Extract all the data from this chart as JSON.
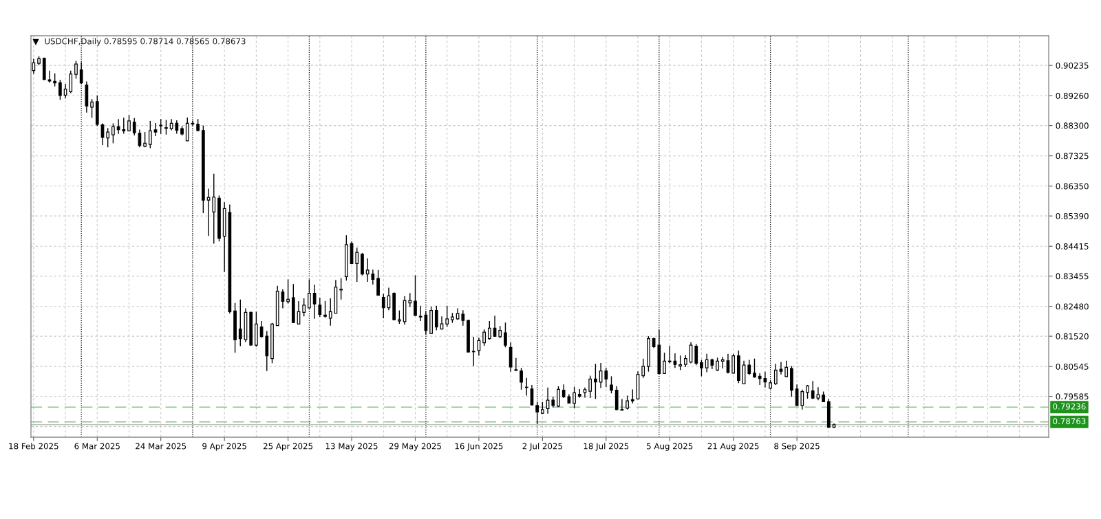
{
  "chart_data": {
    "type": "candlestick",
    "title": "USDCHF,Daily 0.78595 0.78714 0.78565 0.78673",
    "categories": [
      "18 Feb 2025",
      null,
      null,
      null,
      null,
      null,
      null,
      null,
      null,
      null,
      null,
      null,
      "6 Mar 2025",
      null,
      null,
      null,
      null,
      null,
      null,
      null,
      null,
      null,
      null,
      null,
      "24 Mar 2025",
      null,
      null,
      null,
      null,
      null,
      null,
      null,
      null,
      null,
      null,
      null,
      "9 Apr 2025",
      null,
      null,
      null,
      null,
      null,
      null,
      null,
      null,
      null,
      null,
      null,
      "25 Apr 2025",
      null,
      null,
      null,
      null,
      null,
      null,
      null,
      null,
      null,
      null,
      null,
      "13 May 2025",
      null,
      null,
      null,
      null,
      null,
      null,
      null,
      null,
      null,
      null,
      null,
      "29 May 2025",
      null,
      null,
      null,
      null,
      null,
      null,
      null,
      null,
      null,
      null,
      null,
      "16 Jun 2025",
      null,
      null,
      null,
      null,
      null,
      null,
      null,
      null,
      null,
      null,
      null,
      "2 Jul 2025",
      null,
      null,
      null,
      null,
      null,
      null,
      null,
      null,
      null,
      null,
      null,
      "18 Jul 2025",
      null,
      null,
      null,
      null,
      null,
      null,
      null,
      null,
      null,
      null,
      null,
      "5 Aug 2025",
      null,
      null,
      null,
      null,
      null,
      null,
      null,
      null,
      null,
      null,
      null,
      "21 Aug 2025",
      null,
      null,
      null,
      null,
      null,
      null,
      null,
      null,
      null,
      null,
      null,
      "8 Sep 2025",
      null,
      null,
      null,
      null,
      null,
      null,
      null,
      null,
      null,
      null,
      null,
      null,
      null,
      null,
      null,
      null,
      null,
      null,
      null,
      null,
      null,
      null,
      null,
      null,
      null,
      null,
      null,
      null,
      null,
      null,
      null,
      null,
      null,
      null,
      null,
      null,
      null,
      null,
      null,
      null,
      null,
      null,
      null,
      null,
      null,
      null,
      null
    ],
    "ohlc": [
      [
        0.9007,
        0.9045,
        0.8996,
        0.9032
      ],
      [
        0.903,
        0.9053,
        0.9024,
        0.9045
      ],
      [
        0.9046,
        0.9049,
        0.8977,
        0.8978
      ],
      [
        0.8977,
        0.9007,
        0.8968,
        0.8973
      ],
      [
        0.8972,
        0.8998,
        0.8956,
        0.8967
      ],
      [
        0.8968,
        0.8977,
        0.8913,
        0.8927
      ],
      [
        0.8928,
        0.8964,
        0.8917,
        0.8947
      ],
      [
        0.8939,
        0.9007,
        0.8934,
        0.8996
      ],
      [
        0.8995,
        0.9038,
        0.8981,
        0.9028
      ],
      [
        0.9009,
        0.9034,
        0.8964,
        0.8967
      ],
      [
        0.896,
        0.8972,
        0.8872,
        0.8893
      ],
      [
        0.8889,
        0.8915,
        0.8855,
        0.8906
      ],
      [
        0.8907,
        0.8927,
        0.8828,
        0.8834
      ],
      [
        0.8832,
        0.8837,
        0.8767,
        0.8792
      ],
      [
        0.879,
        0.8822,
        0.876,
        0.8809
      ],
      [
        0.88,
        0.8837,
        0.8773,
        0.8826
      ],
      [
        0.8826,
        0.8851,
        0.8803,
        0.8817
      ],
      [
        0.8817,
        0.8855,
        0.8804,
        0.8813
      ],
      [
        0.8813,
        0.8864,
        0.8811,
        0.8845
      ],
      [
        0.8841,
        0.8854,
        0.8798,
        0.8807
      ],
      [
        0.8805,
        0.8817,
        0.876,
        0.8766
      ],
      [
        0.8763,
        0.8809,
        0.876,
        0.8773
      ],
      [
        0.8769,
        0.8845,
        0.8757,
        0.8813
      ],
      [
        0.8816,
        0.8838,
        0.8796,
        0.8809
      ],
      [
        0.8831,
        0.8851,
        0.8803,
        0.8829
      ],
      [
        0.8823,
        0.8848,
        0.8801,
        0.8821
      ],
      [
        0.882,
        0.8851,
        0.8815,
        0.8837
      ],
      [
        0.8837,
        0.8847,
        0.8804,
        0.8815
      ],
      [
        0.882,
        0.8828,
        0.8798,
        0.8803
      ],
      [
        0.8781,
        0.8856,
        0.8781,
        0.8837
      ],
      [
        0.8835,
        0.8845,
        0.883,
        0.8837
      ],
      [
        0.8834,
        0.8851,
        0.8811,
        0.8814
      ],
      [
        0.8814,
        0.883,
        0.8548,
        0.859
      ],
      [
        0.859,
        0.8627,
        0.8475,
        0.8599
      ],
      [
        0.8552,
        0.8675,
        0.845,
        0.86
      ],
      [
        0.8596,
        0.8605,
        0.8457,
        0.8467
      ],
      [
        0.8474,
        0.8583,
        0.8359,
        0.8563
      ],
      [
        0.855,
        0.8576,
        0.8225,
        0.8231
      ],
      [
        0.8233,
        0.8259,
        0.8099,
        0.8141
      ],
      [
        0.8175,
        0.827,
        0.812,
        0.8144
      ],
      [
        0.8141,
        0.8242,
        0.8133,
        0.8229
      ],
      [
        0.8229,
        0.8231,
        0.8121,
        0.8124
      ],
      [
        0.8123,
        0.8231,
        0.8118,
        0.8191
      ],
      [
        0.8182,
        0.8201,
        0.8148,
        0.8151
      ],
      [
        0.8152,
        0.8169,
        0.804,
        0.8089
      ],
      [
        0.808,
        0.8195,
        0.8065,
        0.8191
      ],
      [
        0.8186,
        0.8314,
        0.8186,
        0.8297
      ],
      [
        0.8294,
        0.8303,
        0.8242,
        0.8264
      ],
      [
        0.8263,
        0.8335,
        0.8257,
        0.8271
      ],
      [
        0.8276,
        0.832,
        0.8195,
        0.8196
      ],
      [
        0.8191,
        0.8265,
        0.8189,
        0.8231
      ],
      [
        0.8229,
        0.8274,
        0.8216,
        0.8252
      ],
      [
        0.8243,
        0.8335,
        0.8242,
        0.829
      ],
      [
        0.829,
        0.8318,
        0.8208,
        0.8256
      ],
      [
        0.8252,
        0.8276,
        0.8214,
        0.8222
      ],
      [
        0.822,
        0.8265,
        0.8212,
        0.8216
      ],
      [
        0.821,
        0.8274,
        0.8186,
        0.8231
      ],
      [
        0.8226,
        0.8333,
        0.8225,
        0.831
      ],
      [
        0.8301,
        0.8339,
        0.827,
        0.8303
      ],
      [
        0.8344,
        0.8477,
        0.8331,
        0.8447
      ],
      [
        0.845,
        0.8457,
        0.8384,
        0.8386
      ],
      [
        0.8386,
        0.8437,
        0.8327,
        0.8422
      ],
      [
        0.8416,
        0.842,
        0.8348,
        0.8352
      ],
      [
        0.8352,
        0.8403,
        0.8327,
        0.8365
      ],
      [
        0.8352,
        0.8366,
        0.8318,
        0.8335
      ],
      [
        0.8338,
        0.8365,
        0.8282,
        0.8284
      ],
      [
        0.8277,
        0.8288,
        0.821,
        0.8244
      ],
      [
        0.8244,
        0.8308,
        0.8236,
        0.8282
      ],
      [
        0.829,
        0.8293,
        0.8203,
        0.8205
      ],
      [
        0.8201,
        0.8235,
        0.8192,
        0.8205
      ],
      [
        0.8199,
        0.8281,
        0.8189,
        0.8267
      ],
      [
        0.8259,
        0.8291,
        0.8246,
        0.8267
      ],
      [
        0.8265,
        0.8348,
        0.8218,
        0.8219
      ],
      [
        0.8216,
        0.825,
        0.8201,
        0.8214
      ],
      [
        0.822,
        0.8233,
        0.8157,
        0.8171
      ],
      [
        0.8161,
        0.8247,
        0.8159,
        0.8235
      ],
      [
        0.8235,
        0.825,
        0.8171,
        0.8182
      ],
      [
        0.8175,
        0.8216,
        0.8174,
        0.8192
      ],
      [
        0.8191,
        0.825,
        0.8182,
        0.8208
      ],
      [
        0.8205,
        0.8227,
        0.8195,
        0.8214
      ],
      [
        0.8208,
        0.8242,
        0.8205,
        0.8225
      ],
      [
        0.8223,
        0.8236,
        0.8186,
        0.8203
      ],
      [
        0.8203,
        0.8205,
        0.8101,
        0.8101
      ],
      [
        0.8103,
        0.815,
        0.8056,
        0.8102
      ],
      [
        0.8106,
        0.8148,
        0.8089,
        0.8138
      ],
      [
        0.8131,
        0.8174,
        0.8121,
        0.8165
      ],
      [
        0.8144,
        0.8201,
        0.8141,
        0.8178
      ],
      [
        0.8178,
        0.8218,
        0.815,
        0.8152
      ],
      [
        0.815,
        0.8185,
        0.8146,
        0.8171
      ],
      [
        0.8163,
        0.8196,
        0.8116,
        0.8123
      ],
      [
        0.8116,
        0.8133,
        0.8038,
        0.8053
      ],
      [
        0.8044,
        0.8082,
        0.804,
        0.8042
      ],
      [
        0.804,
        0.805,
        0.798,
        0.8004
      ],
      [
        0.7988,
        0.8018,
        0.7961,
        0.7987
      ],
      [
        0.7982,
        0.7995,
        0.7929,
        0.7931
      ],
      [
        0.7929,
        0.794,
        0.7869,
        0.7908
      ],
      [
        0.7904,
        0.794,
        0.7902,
        0.7916
      ],
      [
        0.7919,
        0.7987,
        0.7903,
        0.7946
      ],
      [
        0.7946,
        0.7958,
        0.7923,
        0.7929
      ],
      [
        0.7927,
        0.7991,
        0.7924,
        0.7981
      ],
      [
        0.7978,
        0.7997,
        0.7953,
        0.7957
      ],
      [
        0.7957,
        0.7965,
        0.7936,
        0.7937
      ],
      [
        0.7936,
        0.7989,
        0.7921,
        0.797
      ],
      [
        0.7965,
        0.7982,
        0.7954,
        0.7959
      ],
      [
        0.7971,
        0.7987,
        0.7954,
        0.798
      ],
      [
        0.7975,
        0.8025,
        0.7953,
        0.8014
      ],
      [
        0.8014,
        0.8063,
        0.795,
        0.8005
      ],
      [
        0.8004,
        0.8066,
        0.7985,
        0.804
      ],
      [
        0.804,
        0.805,
        0.7988,
        0.8014
      ],
      [
        0.7995,
        0.8023,
        0.7968,
        0.7978
      ],
      [
        0.7978,
        0.7991,
        0.7914,
        0.7916
      ],
      [
        0.7916,
        0.795,
        0.7913,
        0.7914
      ],
      [
        0.792,
        0.7961,
        0.7916,
        0.7944
      ],
      [
        0.7948,
        0.7981,
        0.7936,
        0.7944
      ],
      [
        0.795,
        0.8039,
        0.7948,
        0.8029
      ],
      [
        0.8025,
        0.808,
        0.8018,
        0.8055
      ],
      [
        0.8055,
        0.8152,
        0.8038,
        0.8144
      ],
      [
        0.8144,
        0.8148,
        0.8114,
        0.8118
      ],
      [
        0.8123,
        0.8172,
        0.8029,
        0.8032
      ],
      [
        0.8032,
        0.8099,
        0.8031,
        0.8072
      ],
      [
        0.8072,
        0.8121,
        0.8065,
        0.807
      ],
      [
        0.8072,
        0.8097,
        0.805,
        0.8061
      ],
      [
        0.8056,
        0.809,
        0.8043,
        0.806
      ],
      [
        0.8061,
        0.8091,
        0.8053,
        0.808
      ],
      [
        0.8069,
        0.8133,
        0.8065,
        0.8123
      ],
      [
        0.812,
        0.8127,
        0.8059,
        0.8065
      ],
      [
        0.8067,
        0.8076,
        0.8023,
        0.805
      ],
      [
        0.805,
        0.8095,
        0.8036,
        0.8076
      ],
      [
        0.8076,
        0.808,
        0.8046,
        0.8059
      ],
      [
        0.8043,
        0.8083,
        0.804,
        0.8072
      ],
      [
        0.8072,
        0.8086,
        0.8048,
        0.8076
      ],
      [
        0.8073,
        0.8095,
        0.8032,
        0.8036
      ],
      [
        0.8033,
        0.8095,
        0.8032,
        0.8089
      ],
      [
        0.8089,
        0.8106,
        0.8001,
        0.801
      ],
      [
        0.7999,
        0.8073,
        0.7998,
        0.8059
      ],
      [
        0.8059,
        0.8076,
        0.8027,
        0.8032
      ],
      [
        0.8033,
        0.808,
        0.8018,
        0.8021
      ],
      [
        0.8023,
        0.8033,
        0.7995,
        0.8016
      ],
      [
        0.8016,
        0.8038,
        0.7987,
        0.8005
      ],
      [
        0.7985,
        0.801,
        0.7982,
        0.8002
      ],
      [
        0.7999,
        0.8063,
        0.7995,
        0.8043
      ],
      [
        0.8046,
        0.8069,
        0.8029,
        0.8039
      ],
      [
        0.8022,
        0.8073,
        0.8021,
        0.8052
      ],
      [
        0.8048,
        0.8056,
        0.7957,
        0.7978
      ],
      [
        0.7982,
        0.7997,
        0.7927,
        0.7929
      ],
      [
        0.7929,
        0.798,
        0.7916,
        0.7974
      ],
      [
        0.7971,
        0.7995,
        0.7951,
        0.7992
      ],
      [
        0.7976,
        0.8008,
        0.795,
        0.7953
      ],
      [
        0.7953,
        0.7988,
        0.7946,
        0.7964
      ],
      [
        0.7963,
        0.7974,
        0.794,
        0.7941
      ],
      [
        0.7941,
        0.795,
        0.7857,
        0.7859
      ],
      [
        0.78595,
        0.78714,
        0.78565,
        0.78673
      ],
      null,
      null,
      null,
      null,
      null,
      null,
      null,
      null,
      null,
      null,
      null,
      null,
      null,
      null,
      null,
      null,
      null,
      null,
      null,
      null,
      null,
      null,
      null,
      null,
      null,
      null,
      null,
      null,
      null,
      null,
      null,
      null,
      null,
      null,
      null,
      null,
      null,
      null,
      null,
      null
    ],
    "ylim": [
      0.7827,
      0.9119
    ],
    "yticks": [
      {
        "value": 0.7861,
        "label": null
      },
      0.79585,
      0.80545,
      {
        "value": 0.8152,
        "label": "0.81520"
      },
      {
        "value": 0.8248,
        "label": "0.82480"
      },
      0.83455,
      0.84415,
      {
        "value": 0.8539,
        "label": "0.85390"
      },
      {
        "value": 0.8635,
        "label": "0.86350"
      },
      0.87325,
      {
        "value": 0.883,
        "label": "0.88300"
      },
      {
        "value": 0.8926,
        "label": "0.89260"
      },
      0.90235
    ],
    "grid": true,
    "ref_lines": [
      {
        "axis": "y",
        "value": 0.79236,
        "label": "0.79236",
        "color": "#88c488",
        "line_style": "dashed"
      },
      {
        "axis": "y",
        "value": 0.78763,
        "label": "0.78763",
        "color": "#88c488",
        "line_style": "dashed"
      },
      {
        "axis": "y",
        "value": 0.78673,
        "color": "#c0c0c0",
        "line_style": "solid"
      }
    ]
  }
}
